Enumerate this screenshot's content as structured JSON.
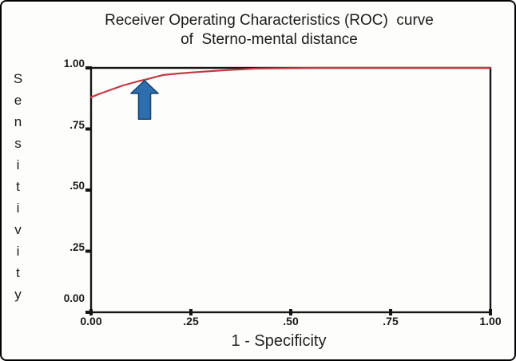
{
  "figure": {
    "background": "#fdfdfc",
    "border_color": "#000000",
    "axis_color": "#161616"
  },
  "chart": {
    "title_line1": "Receiver Operating Characteristics (ROC)  curve",
    "title_line2": "of  Sterno-mental distance"
  },
  "chart_data": {
    "type": "line",
    "title": "Receiver Operating Characteristics (ROC) curve of Sterno-mental distance",
    "xlabel": "1 - Specificity",
    "ylabel": "Sensitivity",
    "xlim": [
      0,
      1
    ],
    "ylim": [
      0,
      1
    ],
    "grid": false,
    "legend_position": "none",
    "x_ticks": [
      {
        "value": 0,
        "label": "0.00"
      },
      {
        "value": 0.25,
        "label": ".25"
      },
      {
        "value": 0.5,
        "label": ".50"
      },
      {
        "value": 0.75,
        "label": ".75"
      },
      {
        "value": 1,
        "label": "1.00"
      }
    ],
    "y_ticks": [
      {
        "value": 0,
        "label": "0.00"
      },
      {
        "value": 0.25,
        "label": ".25"
      },
      {
        "value": 0.5,
        "label": ".50"
      },
      {
        "value": 0.75,
        "label": ".75"
      },
      {
        "value": 1,
        "label": "1.00"
      }
    ],
    "series": [
      {
        "name": "ROC curve",
        "color": "#c23b42",
        "points": [
          [
            0.0,
            0.88
          ],
          [
            0.02,
            0.893
          ],
          [
            0.04,
            0.905
          ],
          [
            0.08,
            0.928
          ],
          [
            0.12,
            0.946
          ],
          [
            0.134,
            0.951
          ],
          [
            0.16,
            0.962
          ],
          [
            0.18,
            0.971
          ],
          [
            0.22,
            0.977
          ],
          [
            0.25,
            0.981
          ],
          [
            0.32,
            0.989
          ],
          [
            0.41,
            0.997
          ],
          [
            0.56,
            1.0
          ],
          [
            1.0,
            1.0
          ]
        ]
      }
    ],
    "annotation_arrow": {
      "shape": "block-arrow-up",
      "x": 0.134,
      "tip_y": 0.948,
      "base_y": 0.79,
      "fill": "#2d6fae",
      "stroke": "#1a4570"
    }
  }
}
